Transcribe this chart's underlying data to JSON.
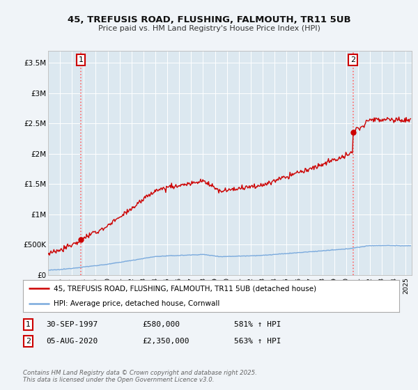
{
  "title": "45, TREFUSIS ROAD, FLUSHING, FALMOUTH, TR11 5UB",
  "subtitle": "Price paid vs. HM Land Registry's House Price Index (HPI)",
  "bg_color": "#f0f4f8",
  "plot_bg_color": "#dce8f0",
  "grid_color": "#ffffff",
  "red_color": "#cc0000",
  "blue_color": "#7aaadd",
  "ylim": [
    0,
    3700000
  ],
  "xlim_start": 1995.0,
  "xlim_end": 2025.5,
  "sale1_x": 1997.75,
  "sale1_y": 580000,
  "sale2_x": 2020.58,
  "sale2_y": 2350000,
  "legend_label_red": "45, TREFUSIS ROAD, FLUSHING, FALMOUTH, TR11 5UB (detached house)",
  "legend_label_blue": "HPI: Average price, detached house, Cornwall",
  "table_row1": [
    "1",
    "30-SEP-1997",
    "£580,000",
    "581% ↑ HPI"
  ],
  "table_row2": [
    "2",
    "05-AUG-2020",
    "£2,350,000",
    "563% ↑ HPI"
  ],
  "footer": "Contains HM Land Registry data © Crown copyright and database right 2025.\nThis data is licensed under the Open Government Licence v3.0.",
  "yticks": [
    0,
    500000,
    1000000,
    1500000,
    2000000,
    2500000,
    3000000,
    3500000
  ],
  "ytick_labels": [
    "£0",
    "£500K",
    "£1M",
    "£1.5M",
    "£2M",
    "£2.5M",
    "£3M",
    "£3.5M"
  ]
}
